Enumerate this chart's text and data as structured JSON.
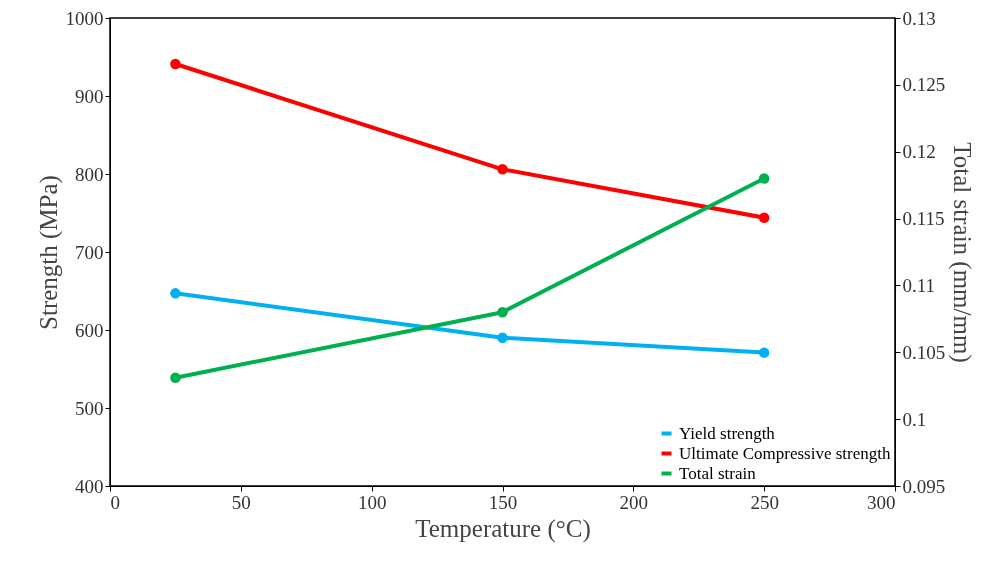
{
  "chart_data": {
    "type": "line",
    "xlabel": "Temperature (°C)",
    "ylabel": "Strength (MPa)",
    "y2label": "Total strain (mm/mm)",
    "x": [
      25,
      150,
      250
    ],
    "series": [
      {
        "name": "Yield strength",
        "color": "#00b0f0",
        "values": [
          647,
          590,
          571
        ]
      },
      {
        "name": "Ultimate Compressive strength",
        "color": "#ff0000",
        "values": [
          941,
          806,
          744
        ]
      },
      {
        "name": "Total strain",
        "color": "#00b050",
        "values": [
          0.1031,
          0.108,
          0.118
        ],
        "axis": "y2"
      }
    ],
    "xlim": [
      0,
      300
    ],
    "xticks": [
      0,
      50,
      100,
      150,
      200,
      250,
      300
    ],
    "ylim": [
      400,
      1000
    ],
    "yticks": [
      400,
      500,
      600,
      700,
      800,
      900,
      1000
    ],
    "y2lim": [
      0.095,
      0.13
    ],
    "y2ticks": [
      0.095,
      0.1,
      0.105,
      0.11,
      0.115,
      0.12,
      0.125,
      0.13
    ],
    "grid": false,
    "legend": "bottom right",
    "marker": "circle",
    "line_style": "solid"
  }
}
